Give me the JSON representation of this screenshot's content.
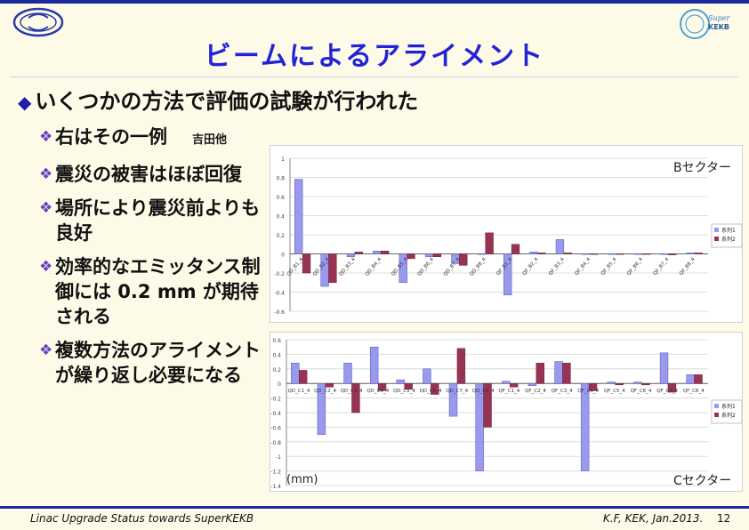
{
  "slide": {
    "title": "ビームによるアライメント",
    "main_bullet": "いくつかの方法で評価の試験が行われた",
    "sub_bullets": [
      {
        "text": "右はその一例",
        "note": "吉田他"
      },
      {
        "text": "震災の被害はほぼ回復",
        "note": ""
      },
      {
        "text": "場所により震災前よりも良好",
        "note": ""
      },
      {
        "text": "効率的なエミッタンス制御には 0.2 mm が期待される",
        "note": ""
      },
      {
        "text": "複数方法のアライメントが繰り返し必要になる",
        "note": ""
      }
    ],
    "sector_b_label": "Bセクター",
    "sector_c_label": "Cセクター",
    "unit_label": "(mm)",
    "footer_left": "Linac Upgrade Status towards SuperKEKB",
    "footer_right": "K.F, KEK, Jan.2013.",
    "page_number": "12",
    "colors": {
      "title": "#2323d6",
      "series1": "#9999ee",
      "series2": "#993355",
      "rule": "#1a2a9a"
    }
  },
  "chart_data": [
    {
      "type": "bar",
      "categories": [
        "QD_B1_4",
        "QD_B2_4",
        "QD_B3_4",
        "QD_B4_4",
        "QD_B5_4",
        "QD_B6_4",
        "QD_B7_4",
        "QD_B8_4",
        "QF_B1_4",
        "QF_B2_4",
        "QF_B3_4",
        "QF_B4_4",
        "QF_B5_4",
        "QF_B6_4",
        "QF_B7_4",
        "QF_B8_4"
      ],
      "series": [
        {
          "name": "系列1",
          "values": [
            0.78,
            -0.34,
            -0.03,
            0.03,
            -0.3,
            -0.03,
            -0.1,
            0.0,
            -0.43,
            0.02,
            0.15,
            0.0,
            0.0,
            0.0,
            0.0,
            0.01
          ]
        },
        {
          "name": "系列2",
          "values": [
            -0.2,
            -0.3,
            0.02,
            0.03,
            -0.05,
            -0.03,
            -0.12,
            0.22,
            0.1,
            0.01,
            0.01,
            0.0,
            0.0,
            0.0,
            -0.01,
            0.01
          ]
        }
      ],
      "ylim": [
        -0.6,
        1.0
      ],
      "yticks": [
        "1",
        "0.8",
        "0.6",
        "0.4",
        "0.2",
        "0",
        "-0.2",
        "-0.4",
        "-0.6"
      ],
      "legend": "right",
      "grid": true
    },
    {
      "type": "bar",
      "categories": [
        "QD_C1_4",
        "QD_C2_4",
        "QD_C3_4",
        "QD_C4_4",
        "QD_C5_4",
        "QD_C6_4",
        "QD_C7_4",
        "QD_C8_4",
        "QF_C1_4",
        "QF_C2_4",
        "QF_C3_4",
        "QF_C4_4",
        "QF_C5_4",
        "QF_C6_4",
        "QF_C7_4",
        "QF_C8_4"
      ],
      "series": [
        {
          "name": "系列1",
          "values": [
            0.28,
            -0.7,
            0.28,
            0.5,
            0.05,
            0.2,
            -0.45,
            -1.2,
            0.03,
            -0.03,
            0.3,
            -1.2,
            0.02,
            0.02,
            0.42,
            0.12
          ]
        },
        {
          "name": "系列2",
          "values": [
            0.18,
            -0.05,
            -0.4,
            -0.1,
            -0.08,
            -0.15,
            0.48,
            -0.6,
            -0.05,
            0.28,
            0.28,
            -0.1,
            -0.02,
            -0.02,
            -0.12,
            0.12
          ]
        }
      ],
      "ylim": [
        -1.4,
        0.6
      ],
      "yticks": [
        "0.6",
        "0.4",
        "0.2",
        "0",
        "-0.2",
        "-0.4",
        "-0.6",
        "-0.8",
        "-1",
        "-1.2",
        "-1.4"
      ],
      "legend": "right",
      "grid": true
    }
  ]
}
